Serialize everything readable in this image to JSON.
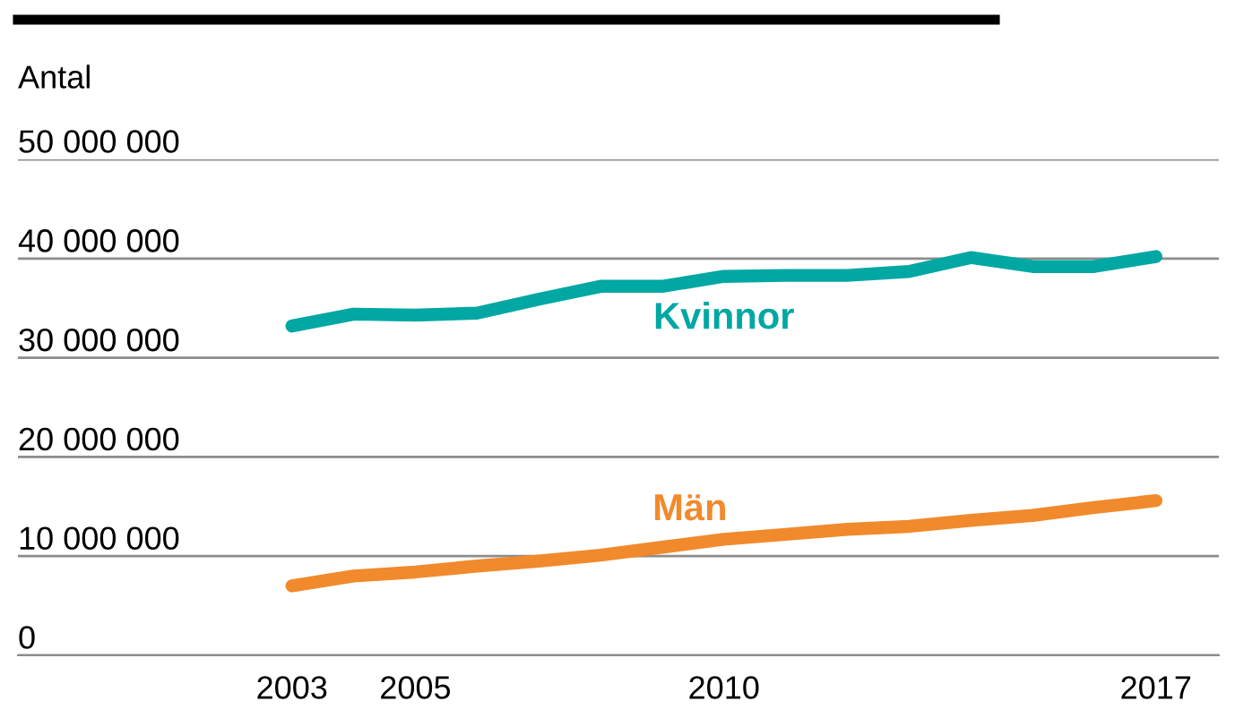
{
  "chart_data": {
    "type": "line",
    "ylabel": "Antal",
    "x": [
      2003,
      2004,
      2005,
      2006,
      2007,
      2008,
      2009,
      2010,
      2011,
      2012,
      2013,
      2014,
      2015,
      2016,
      2017
    ],
    "series": [
      {
        "name": "Kvinnor",
        "color": "#00a7a3",
        "values": [
          33200000,
          34400000,
          34300000,
          34500000,
          35900000,
          37200000,
          37200000,
          38200000,
          38300000,
          38300000,
          38700000,
          40100000,
          39200000,
          39200000,
          40200000
        ]
      },
      {
        "name": "Män",
        "color": "#f18a2c",
        "values": [
          7000000,
          8000000,
          8400000,
          9000000,
          9500000,
          10100000,
          10900000,
          11700000,
          12200000,
          12700000,
          13000000,
          13600000,
          14100000,
          14900000,
          15600000
        ]
      }
    ],
    "xlim": [
      1998.56,
      2018.02
    ],
    "xticks": [
      2003,
      2005,
      2010,
      2017
    ],
    "ylim": [
      0,
      50000000
    ],
    "yticks": [
      0,
      {
        "value": 10000000,
        "label": "10 000 000"
      },
      {
        "value": 20000000,
        "label": "20 000 000"
      },
      {
        "value": 30000000,
        "label": "30 000 000"
      },
      {
        "value": 40000000,
        "label": "40 000 000"
      },
      {
        "value": 50000000,
        "label": "50 000 000"
      }
    ],
    "grid": "y",
    "legend": false,
    "marker": "none",
    "line_style": "solid"
  }
}
